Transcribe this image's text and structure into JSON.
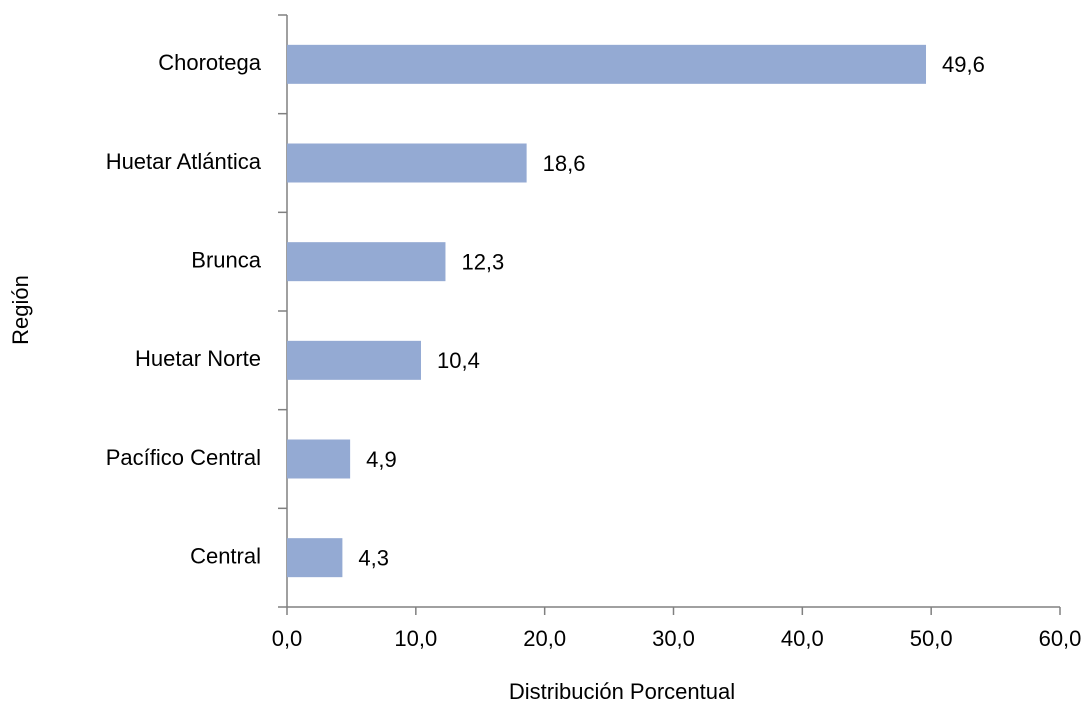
{
  "chart_data": {
    "type": "hbar",
    "x_label": "Distribución Porcentual",
    "y_label": "Región",
    "categories": [
      "Chorotega",
      "Huetar Atlántica",
      "Brunca",
      "Huetar Norte",
      "Pacífico Central",
      "Central"
    ],
    "values": [
      49.6,
      18.6,
      12.3,
      10.4,
      4.9,
      4.3
    ],
    "value_labels": [
      "49,6",
      "18,6",
      "12,3",
      "10,4",
      "4,9",
      "4,3"
    ],
    "color": "#94aad3",
    "xlim": [
      0,
      60
    ],
    "xticks": [
      {
        "value": 0,
        "label": "0,0"
      },
      {
        "value": 10,
        "label": "10,0"
      },
      {
        "value": 20,
        "label": "20,0"
      },
      {
        "value": 30,
        "label": "30,0"
      },
      {
        "value": 40,
        "label": "40,0"
      },
      {
        "value": 50,
        "label": "50,0"
      },
      {
        "value": 60,
        "label": "60,0"
      }
    ],
    "grid": false
  }
}
